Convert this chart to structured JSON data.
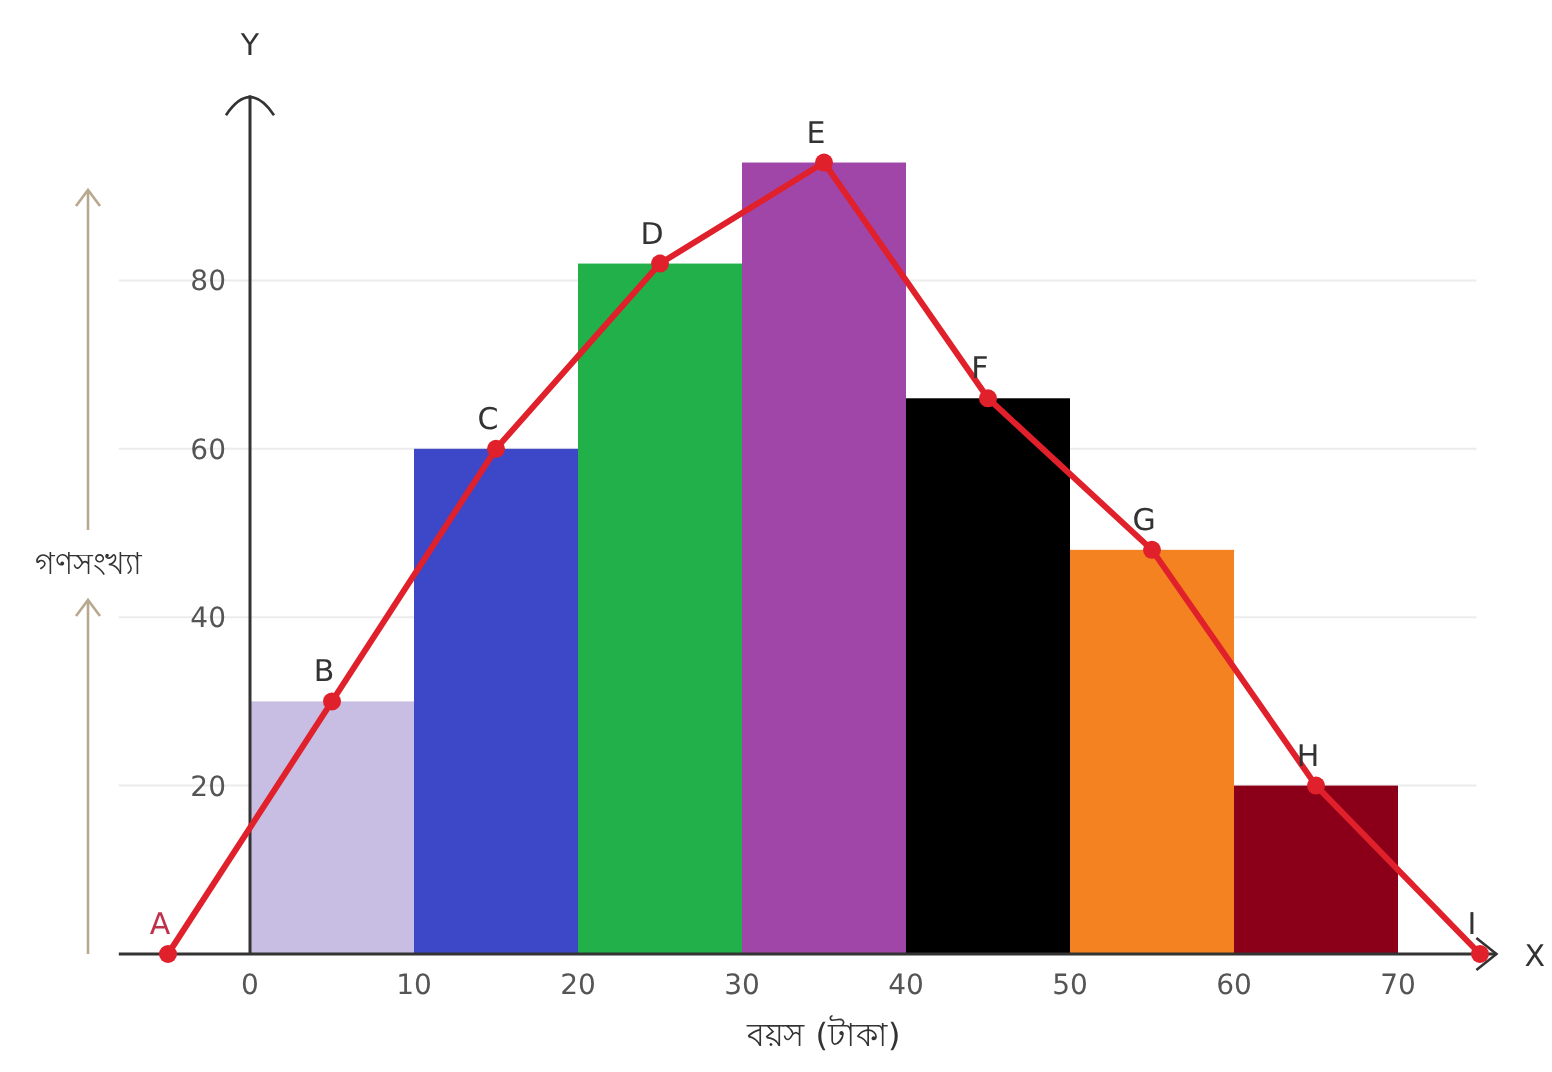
{
  "chart_data": {
    "type": "histogram",
    "xlabel": "বয়স (টাকা)",
    "ylabel": "গণসংখ্যা",
    "bins": [
      0,
      10,
      20,
      30,
      40,
      50,
      60,
      70
    ],
    "values": [
      30,
      60,
      82,
      94,
      66,
      48,
      20
    ],
    "colors": [
      "#c8bde3",
      "#3d48c8",
      "#22b04a",
      "#a046a8",
      "#000000",
      "#f58220",
      "#8b0018"
    ],
    "series": [
      {
        "type": "line",
        "color": "#e0202a",
        "x": [
          -5,
          5,
          15,
          25,
          35,
          45,
          55,
          65,
          75
        ],
        "values": [
          0,
          30,
          60,
          82,
          94,
          66,
          48,
          20,
          0
        ]
      }
    ],
    "marker": "circle",
    "line_style": "solid",
    "xlim": [
      -8,
      76
    ],
    "ylim": [
      0,
      102
    ],
    "xticks": [
      0,
      10,
      20,
      30,
      40,
      50,
      60,
      70
    ],
    "yticks": [
      20,
      40,
      60,
      80
    ],
    "grid": "y",
    "annotations": [
      {
        "text": "A",
        "x": -5,
        "y": 0
      },
      {
        "text": "B",
        "x": 5,
        "y": 30
      },
      {
        "text": "C",
        "x": 15,
        "y": 60
      },
      {
        "text": "D",
        "x": 25,
        "y": 82
      },
      {
        "text": "E",
        "x": 35,
        "y": 94
      },
      {
        "text": "F",
        "x": 45,
        "y": 66
      },
      {
        "text": "G",
        "x": 55,
        "y": 48
      },
      {
        "text": "H",
        "x": 65,
        "y": 20
      },
      {
        "text": "I",
        "x": 75,
        "y": 0
      },
      "Y",
      "X"
    ]
  }
}
